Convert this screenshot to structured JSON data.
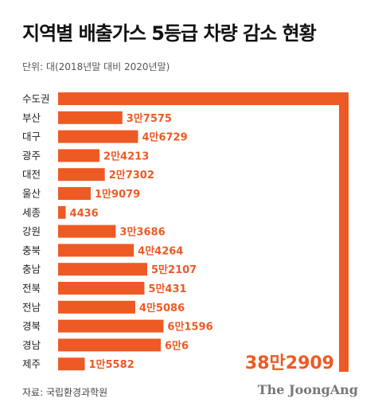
{
  "chart_data": {
    "type": "bar",
    "orientation": "horizontal",
    "title": "지역별 배출가스 5등급 차량 감소 현황",
    "subtitle": "단위: 대(2018년말 대비 2020년말)",
    "categories": [
      "수도권",
      "부산",
      "대구",
      "광주",
      "대전",
      "울산",
      "세종",
      "강원",
      "충북",
      "충남",
      "전북",
      "전남",
      "경북",
      "경남",
      "제주"
    ],
    "values": [
      382909,
      37575,
      46729,
      24213,
      27302,
      19079,
      4436,
      33686,
      44264,
      52107,
      50431,
      45086,
      61596,
      60006,
      15582
    ],
    "value_labels": [
      "38만2909",
      "3만7575",
      "4만6729",
      "2만4213",
      "2만7302",
      "1만9079",
      "4436",
      "3만3686",
      "4만4264",
      "5만2107",
      "5만431",
      "4만5086",
      "6만1596",
      "6만6",
      "1만5582"
    ],
    "color": "#ee5a24",
    "axis_break": "수도권",
    "grid": false,
    "legend": "none"
  },
  "source": "자료: 국립환경과학원",
  "brand": "The JoongAng"
}
